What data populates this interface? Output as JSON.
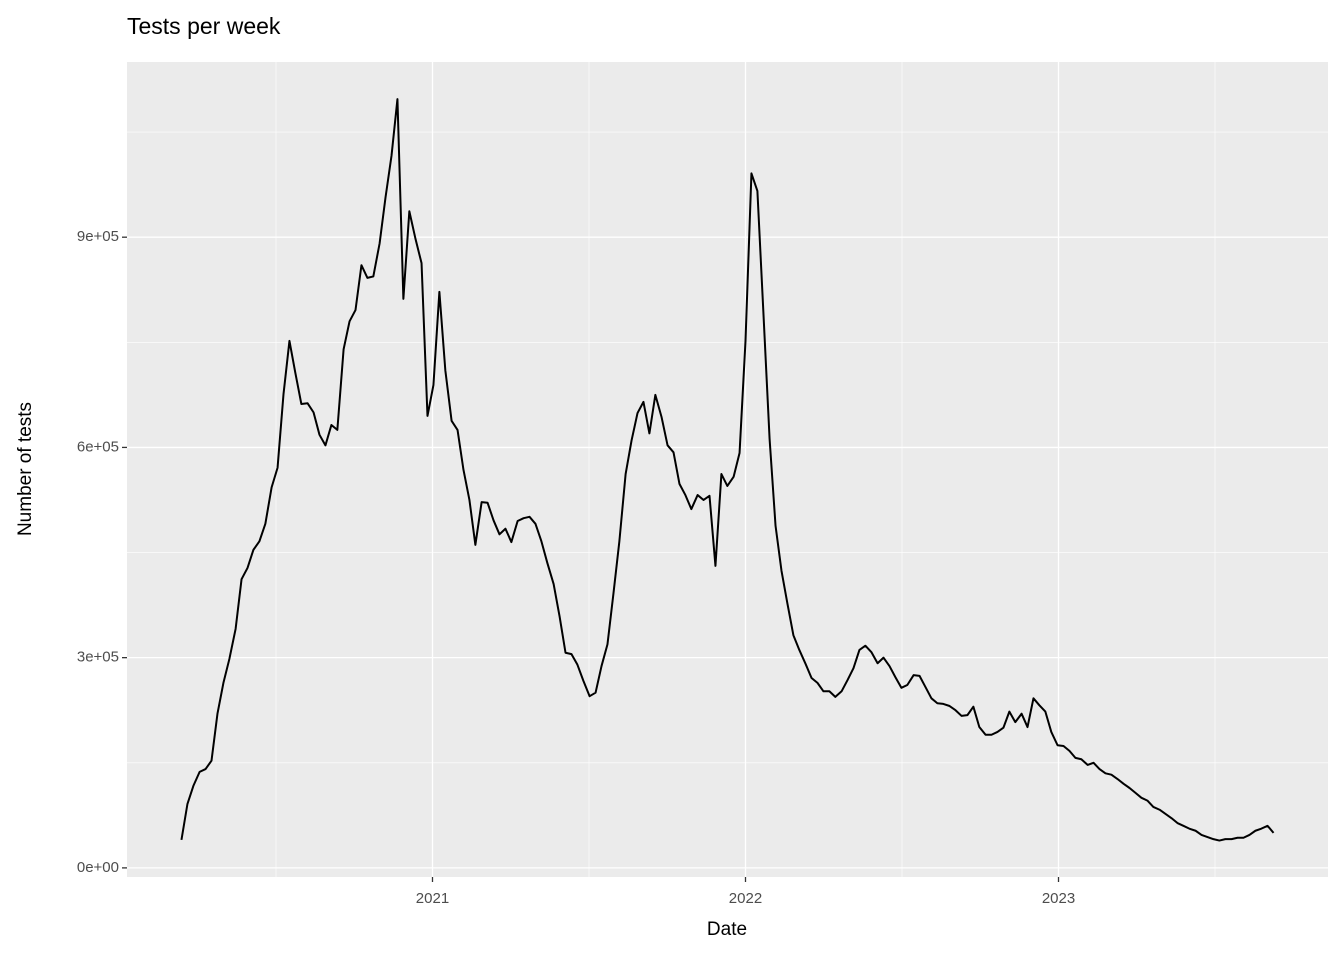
{
  "chart_data": {
    "type": "line",
    "title": "Tests per week",
    "x_label": "Date",
    "y_label": "Number of tests",
    "color": "#000000",
    "grid": true,
    "x": [
      2020.198,
      2020.217,
      2020.236,
      2020.256,
      2020.275,
      2020.294,
      2020.313,
      2020.332,
      2020.351,
      2020.371,
      2020.39,
      2020.409,
      2020.428,
      2020.447,
      2020.466,
      2020.486,
      2020.505,
      2020.524,
      2020.543,
      2020.562,
      2020.581,
      2020.601,
      2020.62,
      2020.639,
      2020.658,
      2020.677,
      2020.696,
      2020.716,
      2020.735,
      2020.754,
      2020.773,
      2020.792,
      2020.811,
      2020.831,
      2020.85,
      2020.869,
      2020.888,
      2020.907,
      2020.926,
      2020.946,
      2020.965,
      2020.984,
      2021.003,
      2021.022,
      2021.041,
      2021.061,
      2021.08,
      2021.099,
      2021.118,
      2021.137,
      2021.157,
      2021.176,
      2021.195,
      2021.214,
      2021.233,
      2021.252,
      2021.272,
      2021.291,
      2021.31,
      2021.329,
      2021.348,
      2021.367,
      2021.387,
      2021.406,
      2021.425,
      2021.444,
      2021.463,
      2021.482,
      2021.502,
      2021.521,
      2021.54,
      2021.559,
      2021.578,
      2021.597,
      2021.617,
      2021.636,
      2021.655,
      2021.674,
      2021.693,
      2021.712,
      2021.732,
      2021.751,
      2021.77,
      2021.789,
      2021.808,
      2021.827,
      2021.847,
      2021.866,
      2021.885,
      2021.904,
      2021.923,
      2021.942,
      2021.962,
      2021.981,
      2022.0,
      2022.019,
      2022.038,
      2022.057,
      2022.077,
      2022.096,
      2022.115,
      2022.134,
      2022.153,
      2022.172,
      2022.192,
      2022.211,
      2022.23,
      2022.249,
      2022.268,
      2022.287,
      2022.307,
      2022.326,
      2022.345,
      2022.364,
      2022.383,
      2022.402,
      2022.422,
      2022.441,
      2022.46,
      2022.479,
      2022.498,
      2022.517,
      2022.537,
      2022.556,
      2022.575,
      2022.594,
      2022.613,
      2022.632,
      2022.652,
      2022.671,
      2022.69,
      2022.709,
      2022.728,
      2022.747,
      2022.767,
      2022.786,
      2022.805,
      2022.824,
      2022.843,
      2022.862,
      2022.882,
      2022.901,
      2022.92,
      2022.939,
      2022.958,
      2022.977,
      2022.997,
      2023.016,
      2023.035,
      2023.054,
      2023.073,
      2023.093,
      2023.112,
      2023.131,
      2023.15,
      2023.169,
      2023.188,
      2023.208,
      2023.227,
      2023.246,
      2023.265,
      2023.284,
      2023.303,
      2023.323,
      2023.342,
      2023.361,
      2023.38,
      2023.399,
      2023.418,
      2023.438,
      2023.457,
      2023.476,
      2023.495,
      2023.514,
      2023.533,
      2023.553,
      2023.572,
      2023.591,
      2023.61,
      2023.629,
      2023.648,
      2023.668,
      2023.687
    ],
    "values": [
      40000,
      91000,
      117000,
      137000,
      141000,
      153000,
      220000,
      264000,
      298000,
      341000,
      412000,
      428000,
      454000,
      466000,
      491000,
      543000,
      571000,
      676000,
      752000,
      706000,
      662000,
      663000,
      650000,
      618000,
      603000,
      632000,
      625000,
      740000,
      780000,
      796000,
      860000,
      842000,
      844000,
      891000,
      957000,
      1016000,
      1097000,
      812000,
      937000,
      897000,
      863000,
      645000,
      689000,
      822000,
      710000,
      638000,
      625000,
      568000,
      525000,
      461000,
      522000,
      521000,
      496000,
      476000,
      484000,
      465000,
      495000,
      499000,
      501000,
      491000,
      466000,
      435000,
      405000,
      359000,
      307000,
      305000,
      290000,
      267000,
      245000,
      250000,
      288000,
      319000,
      391000,
      466000,
      562000,
      610000,
      649000,
      665000,
      620000,
      675000,
      643000,
      603000,
      593000,
      548000,
      532000,
      512000,
      532000,
      525000,
      531000,
      431000,
      562000,
      545000,
      558000,
      592000,
      752000,
      991000,
      966000,
      794000,
      612000,
      488000,
      424000,
      377000,
      332000,
      311000,
      291000,
      271000,
      264000,
      252000,
      252000,
      244000,
      252000,
      268000,
      285000,
      311000,
      317000,
      308000,
      292000,
      300000,
      288000,
      272000,
      257000,
      261000,
      275000,
      274000,
      258000,
      242000,
      235000,
      234000,
      231000,
      225000,
      217000,
      218000,
      230000,
      201000,
      190000,
      190000,
      194000,
      200000,
      223000,
      208000,
      220000,
      201000,
      242000,
      232000,
      223000,
      194000,
      175000,
      174000,
      167000,
      157000,
      155000,
      147000,
      150000,
      141000,
      135000,
      133000,
      127000,
      120000,
      114000,
      107000,
      100000,
      96000,
      87000,
      83000,
      77000,
      71000,
      64000,
      60000,
      56000,
      53000,
      47000,
      44000,
      41000,
      39000,
      41000,
      41000,
      43000,
      43000,
      47000,
      53000,
      56000,
      60000,
      50000
    ],
    "xlim": [
      2020.024,
      2023.861
    ],
    "xticks": [
      2021,
      2022,
      2023
    ],
    "ylim": [
      -13000,
      1150000
    ],
    "yticks": [
      {
        "value": 0,
        "label": "0e+00"
      },
      {
        "value": 300000,
        "label": "3e+05"
      },
      {
        "value": 600000,
        "label": "6e+05"
      },
      {
        "value": 900000,
        "label": "9e+05"
      }
    ]
  }
}
